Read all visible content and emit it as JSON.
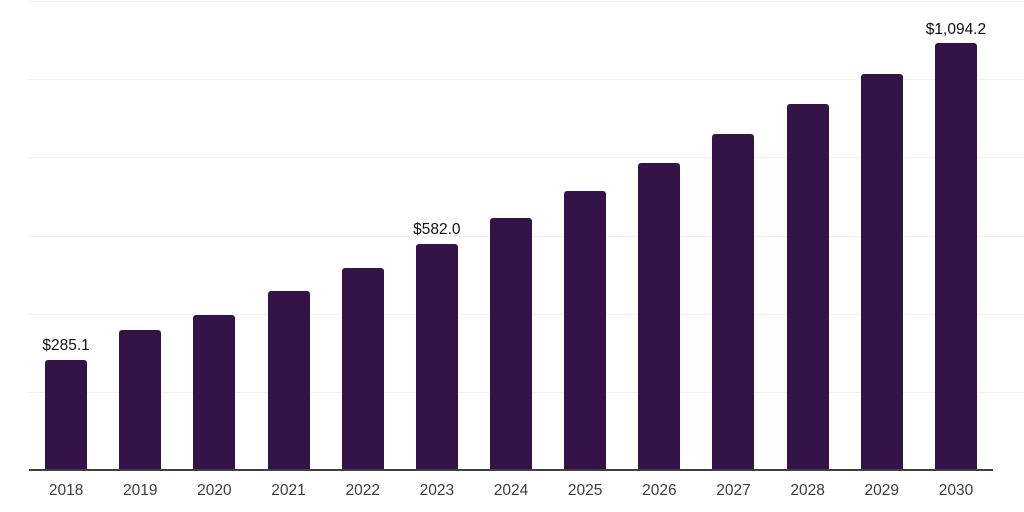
{
  "chart_data": {
    "type": "bar",
    "title": "",
    "xlabel": "",
    "ylabel": "",
    "categories": [
      "2018",
      "2019",
      "2020",
      "2021",
      "2022",
      "2023",
      "2024",
      "2025",
      "2026",
      "2027",
      "2028",
      "2029",
      "2030"
    ],
    "values": [
      285.1,
      360.0,
      400.0,
      460.0,
      519.0,
      582.0,
      648.0,
      717.0,
      789.0,
      862.0,
      939.0,
      1017.0,
      1094.2
    ],
    "data_labels": {
      "2018": "$285.1",
      "2023": "$582.0",
      "2030": "$1,094.2"
    },
    "ylim": [
      0,
      1200
    ],
    "gridline_step": 200,
    "grid": "horizontal",
    "legend_position": "none",
    "colors": {
      "bar": "#331348",
      "gridline": "#f1f1f1",
      "axis_line": "#3f3f3f",
      "tick_label": "#3d3d3d",
      "data_label": "#111111",
      "background": "#ffffff"
    }
  }
}
